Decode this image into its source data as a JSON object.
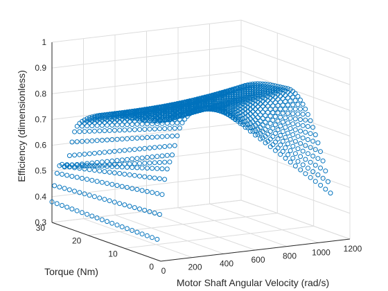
{
  "chart_data": {
    "type": "scatter3d",
    "title": "",
    "xlabel": "Motor Shaft Angular Velocity (rad/s)",
    "ylabel": "Torque (Nm)",
    "zlabel": "Efficiency (dimensionless)",
    "xlim": [
      0,
      1200
    ],
    "ylim": [
      0,
      30
    ],
    "zlim": [
      0.3,
      1.0
    ],
    "xticks": [
      "0",
      "200",
      "400",
      "600",
      "800",
      "1000",
      "1200"
    ],
    "yticks": [
      "0",
      "10",
      "20",
      "30"
    ],
    "zticks": [
      "0.3",
      "0.4",
      "0.5",
      "0.6",
      "0.7",
      "0.8",
      "0.9",
      "1"
    ],
    "grid": true,
    "marker": "circle",
    "series_color": "#0072BD",
    "velocity_range": [
      0,
      1100
    ],
    "torque_range": [
      1,
      30
    ],
    "efficiency_peak": 0.93,
    "efficiency_at_zero_speed_high_torque": 0.45,
    "efficiency_min_dip": 0.35
  },
  "colors": {
    "marker": "#0072BD",
    "grid": "#dcdcdc",
    "axis": "#262626",
    "text": "#262626"
  }
}
